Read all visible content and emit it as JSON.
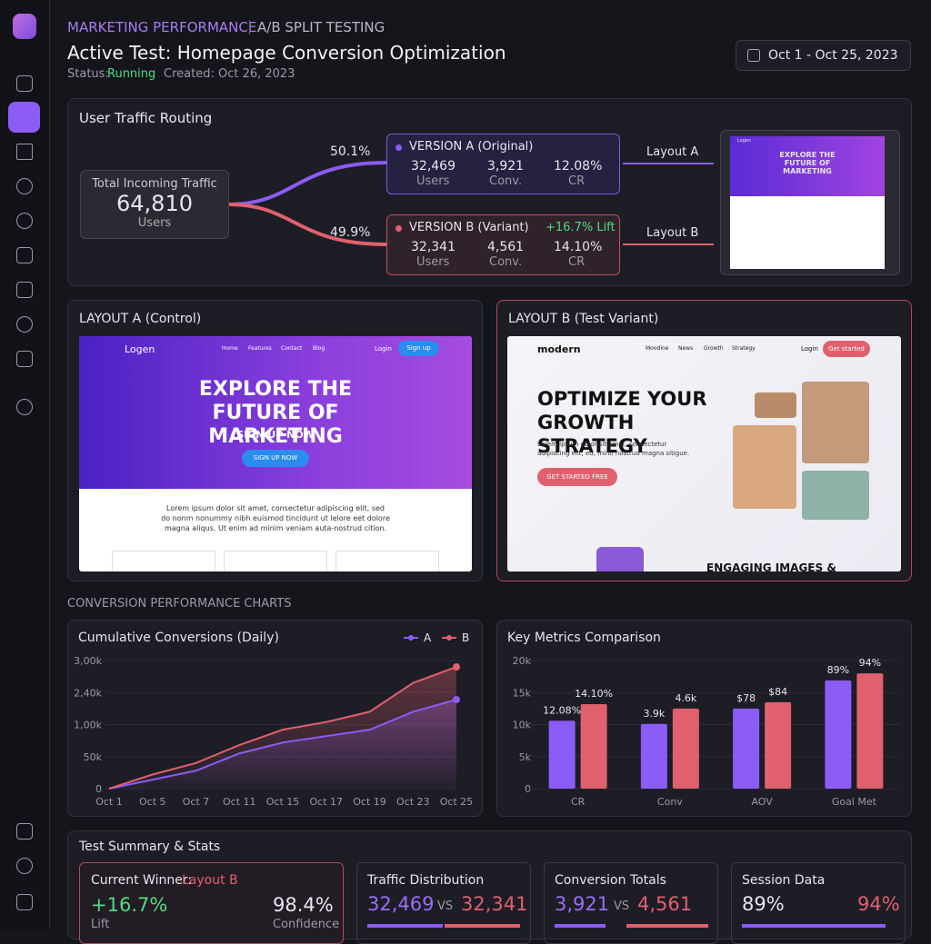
{
  "header": {
    "section": "MARKETING PERFORMANCE",
    "subsection": "A/B SPLIT TESTING",
    "title": "Active Test: Homepage Conversion Optimization",
    "status_label": "Status:",
    "status": "Running",
    "created": "Created: Oct 26, 2023",
    "date_range": "Oct 1 - Oct 25, 2023"
  },
  "routing": {
    "title": "User Traffic Routing",
    "total_label": "Total Incoming Traffic",
    "total": "64,810",
    "total_unit": "Users",
    "split_a": "50.1%",
    "split_b": "49.9%",
    "versions": [
      {
        "name": "VERSION A (Original)",
        "users": "32,469",
        "users_label": "Users",
        "conv": "3,921",
        "conv_label": "Conv.",
        "cr": "12.08%",
        "cr_label": "CR",
        "layout": "Layout A"
      },
      {
        "name": "VERSION B (Variant)",
        "lift": "+16.7% Lift",
        "users": "32,341",
        "users_label": "Users",
        "conv": "4,561",
        "conv_label": "Conv.",
        "cr": "14.10%",
        "cr_label": "CR",
        "layout": "Layout B"
      }
    ]
  },
  "layouts": [
    {
      "title": "LAYOUT A (Control)",
      "brand": "Logen",
      "nav": [
        "Home",
        "Features",
        "Contact",
        "Blog"
      ],
      "login": "Login",
      "signup": "Sign up",
      "headline": "EXPLORE THE FUTURE OF MARKETING",
      "subhead": "SIGN UP NOW",
      "button": "SIGN UP NOW",
      "body": "Lorem ipsum dolor sit amet, consectetur adipiscing elit, sed do nonm nonummy nibh euismod tincidunt ut lelore eet dolore magna aliqus. Ut enim ad minim veniam auta-nostrud cition."
    },
    {
      "title": "LAYOUT B (Test Variant)",
      "brand": "modern",
      "nav": [
        "Moodine",
        "News",
        "Growth",
        "Strategy"
      ],
      "login": "Login",
      "signup": "Get started",
      "headline": "OPTIMIZE YOUR GROWTH STRATEGY",
      "body": "Lorem ipsum dolor sit amet, consectetur adipiscing elit, ed, mino nostrud magna sitigue.",
      "button": "GET STARTED FREE",
      "section": "ENGAGING IMAGES &"
    }
  ],
  "charts_heading": "CONVERSION PERFORMANCE CHARTS",
  "chart_data": [
    {
      "type": "line",
      "title": "Cumulative Conversions (Daily)",
      "categories": [
        "Oct 1",
        "Oct 5",
        "Oct 7",
        "Oct 11",
        "Oct 15",
        "Oct 17",
        "Oct 19",
        "Oct 23",
        "Oct 25"
      ],
      "series": [
        {
          "name": "A",
          "color": "#8b5cf6",
          "values": [
            0,
            14,
            28,
            55,
            72,
            82,
            92,
            120,
            139
          ]
        },
        {
          "name": "B",
          "color": "#e0606e",
          "values": [
            0,
            22,
            40,
            68,
            92,
            104,
            120,
            165,
            190
          ]
        }
      ],
      "ylim": [
        0,
        200
      ],
      "yticks": [
        0,
        {
          "value": 50,
          "label": "50k"
        },
        {
          "value": 100,
          "label": "1,00k"
        },
        {
          "value": 150,
          "label": "2,40k"
        },
        {
          "value": 200,
          "label": "3,00k"
        }
      ],
      "legend": "top-right"
    },
    {
      "type": "bar",
      "title": "Key Metrics Comparison",
      "categories": [
        "CR",
        "Conv",
        "AOV",
        "Goal Met"
      ],
      "series": [
        {
          "name": "A",
          "color": "#8b5cf6",
          "values": [
            10600,
            10100,
            12500,
            16900
          ],
          "annotations": [
            "12.08%",
            "3.9k",
            "$78",
            "89%"
          ]
        },
        {
          "name": "B",
          "color": "#e0606e",
          "values": [
            13200,
            12500,
            13500,
            18000
          ],
          "annotations": [
            "14.10%",
            "4.6k",
            "$84",
            "94%"
          ]
        }
      ],
      "ylim": [
        0,
        20000
      ],
      "yticks": [
        0,
        {
          "value": 5000,
          "label": "5k"
        },
        {
          "value": 10000,
          "label": "10k"
        },
        {
          "value": 15000,
          "label": "15k"
        },
        {
          "value": 20000,
          "label": "20k"
        }
      ]
    }
  ],
  "summary": {
    "title": "Test Summary & Stats",
    "winner": {
      "label": "Current Winner:",
      "value": "Layout B",
      "lift": "+16.7%",
      "lift_label": "Lift",
      "confidence": "98.4%",
      "confidence_label": "Confidence"
    },
    "traffic": {
      "title": "Traffic Distribution",
      "a": "32,469",
      "vs": "VS",
      "b": "32,341"
    },
    "conversions": {
      "title": "Conversion Totals",
      "a": "3,921",
      "vs": "VS",
      "b": "4,561"
    },
    "session": {
      "title": "Session Data",
      "a": "89%",
      "b": "94%"
    }
  }
}
